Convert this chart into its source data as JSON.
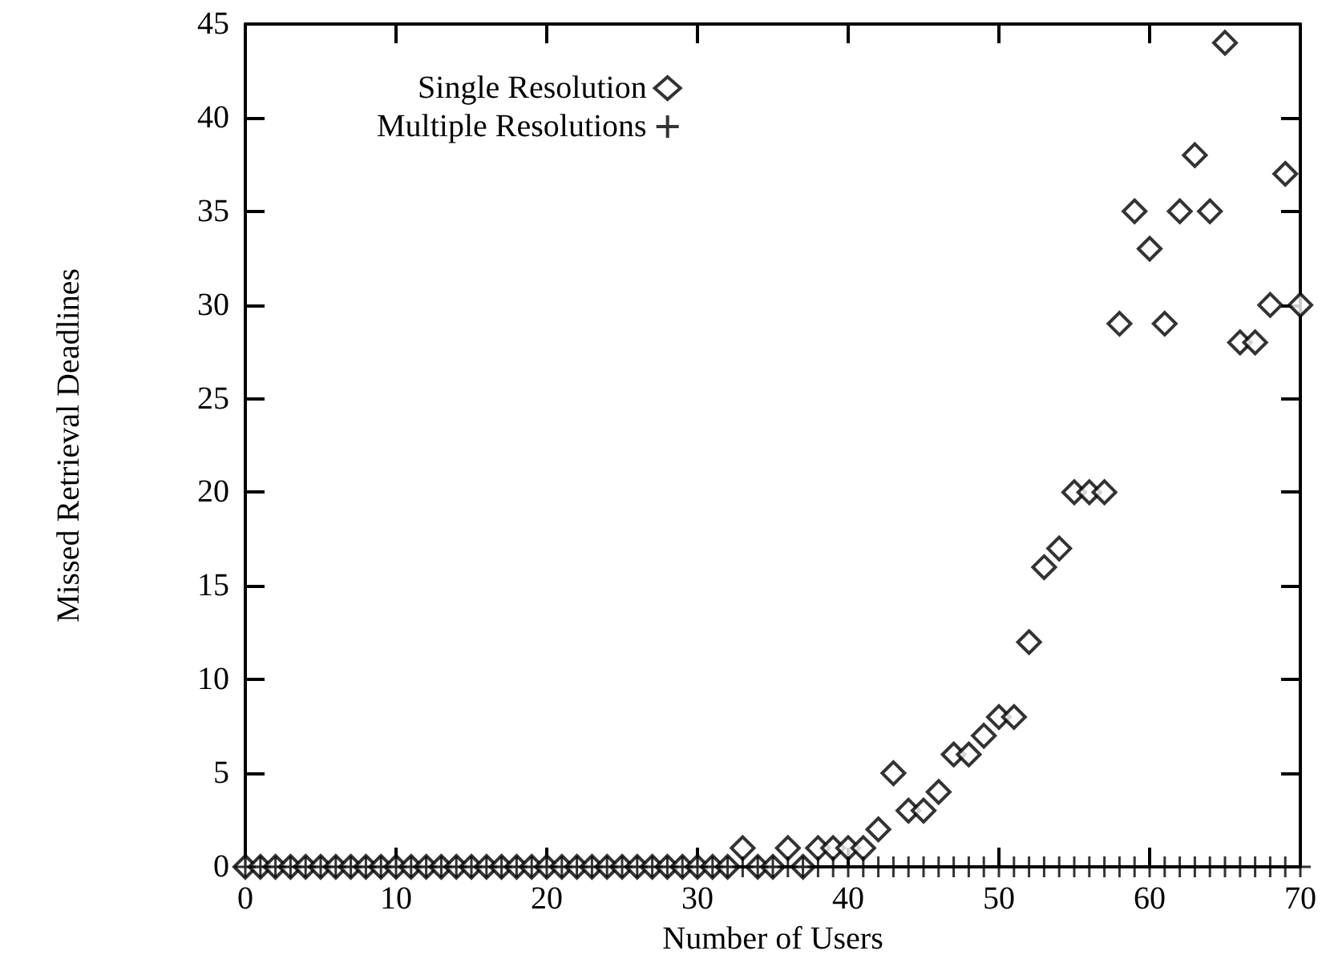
{
  "chart_data": {
    "type": "scatter",
    "xlabel": "Number of Users",
    "ylabel": "Missed Retrieval Deadlines",
    "xlim": [
      0,
      70
    ],
    "xticks": [
      0,
      10,
      20,
      30,
      40,
      50,
      60,
      70
    ],
    "ylim": [
      0,
      45
    ],
    "yticks": [
      0,
      5,
      10,
      15,
      20,
      25,
      30,
      35,
      40,
      45
    ],
    "grid": false,
    "legend": "top left",
    "x": [
      0,
      1,
      2,
      3,
      4,
      5,
      6,
      7,
      8,
      9,
      10,
      11,
      12,
      13,
      14,
      15,
      16,
      17,
      18,
      19,
      20,
      21,
      22,
      23,
      24,
      25,
      26,
      27,
      28,
      29,
      30,
      31,
      32,
      33,
      34,
      35,
      36,
      37,
      38,
      39,
      40,
      41,
      42,
      43,
      44,
      45,
      46,
      47,
      48,
      49,
      50,
      51,
      52,
      53,
      54,
      55,
      56,
      57,
      58,
      59,
      60,
      61,
      62,
      63,
      64,
      65,
      66,
      67,
      68,
      69,
      70
    ],
    "series": [
      {
        "name": "Single Resolution",
        "color": "#000000",
        "marker": "diamond",
        "values": [
          0,
          0,
          0,
          0,
          0,
          0,
          0,
          0,
          0,
          0,
          0,
          0,
          0,
          0,
          0,
          0,
          0,
          0,
          0,
          0,
          0,
          0,
          0,
          0,
          0,
          0,
          0,
          0,
          0,
          0,
          0,
          0,
          0,
          1,
          0,
          0,
          1,
          0,
          1,
          1,
          1,
          1,
          2,
          5,
          3,
          3,
          4,
          6,
          6,
          7,
          8,
          8,
          12,
          16,
          17,
          20,
          20,
          20,
          29,
          35,
          33,
          29,
          35,
          38,
          35,
          44,
          28,
          28,
          30,
          37,
          30
        ]
      },
      {
        "name": "Multiple Resolutions",
        "color": "#000000",
        "marker": "cross",
        "values": [
          0,
          0,
          0,
          0,
          0,
          0,
          0,
          0,
          0,
          0,
          0,
          0,
          0,
          0,
          0,
          0,
          0,
          0,
          0,
          0,
          0,
          0,
          0,
          0,
          0,
          0,
          0,
          0,
          0,
          0,
          0,
          0,
          0,
          0,
          0,
          0,
          0,
          0,
          0,
          0,
          0,
          0,
          0,
          0,
          0,
          0,
          0,
          0,
          0,
          0,
          0,
          0,
          0,
          0,
          0,
          0,
          0,
          0,
          0,
          0,
          0,
          0,
          0,
          0,
          0,
          0,
          0,
          0,
          0,
          0,
          0
        ]
      }
    ]
  }
}
